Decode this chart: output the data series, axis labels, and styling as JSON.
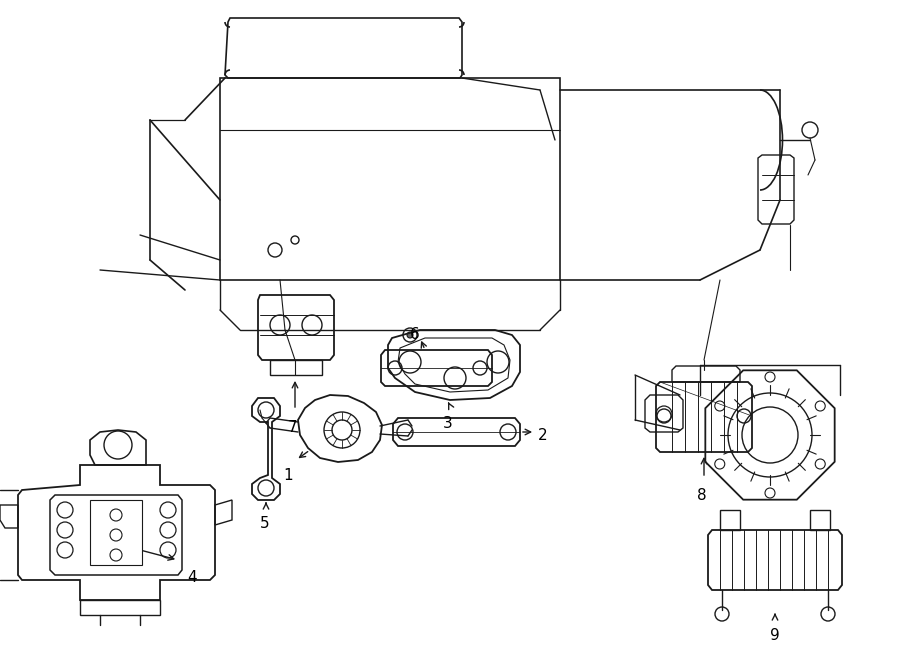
{
  "background_color": "#ffffff",
  "line_color": "#1a1a1a",
  "text_color": "#000000",
  "fig_width": 9.0,
  "fig_height": 6.61,
  "dpi": 100
}
